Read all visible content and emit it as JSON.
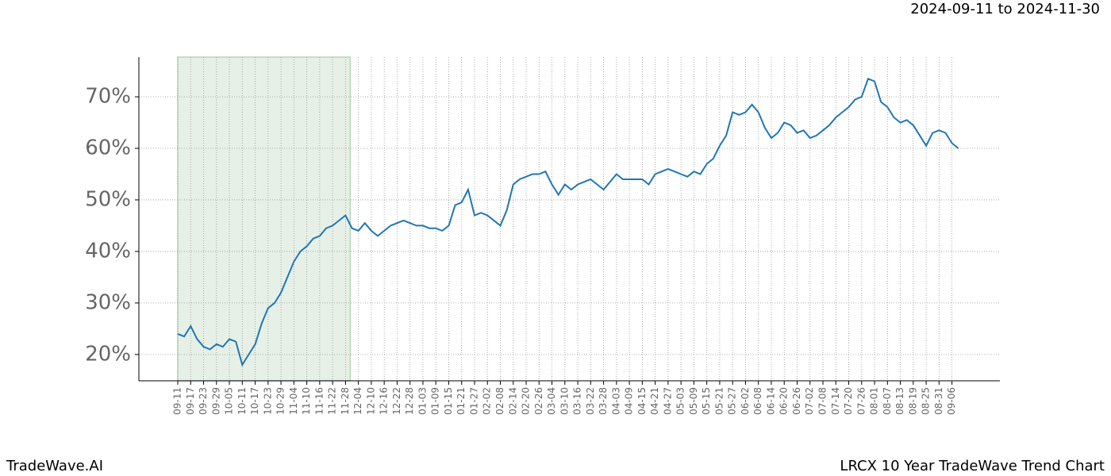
{
  "chart_data": {
    "type": "line",
    "subtitle": "2024-09-11 to 2024-11-30",
    "footer_left": "TradeWave.AI",
    "footer_right": "LRCX 10 Year TradeWave Trend Chart",
    "categories": [
      "09-11",
      null,
      "09-17",
      null,
      "09-23",
      null,
      "09-29",
      null,
      "10-05",
      null,
      "10-11",
      null,
      "10-17",
      null,
      "10-23",
      null,
      "10-29",
      null,
      "11-04",
      null,
      "11-10",
      null,
      "11-16",
      null,
      "11-22",
      null,
      "11-28",
      null,
      "12-04",
      null,
      "12-10",
      null,
      "12-16",
      null,
      "12-22",
      null,
      "12-28",
      null,
      "01-03",
      null,
      "01-09",
      null,
      "01-15",
      null,
      "01-21",
      null,
      "01-27",
      null,
      "02-02",
      null,
      "02-08",
      null,
      "02-14",
      null,
      "02-20",
      null,
      "02-26",
      null,
      "03-04",
      null,
      "03-10",
      null,
      "03-16",
      null,
      "03-22",
      null,
      "03-28",
      null,
      "04-03",
      null,
      "04-09",
      null,
      "04-15",
      null,
      "04-21",
      null,
      "04-27",
      null,
      "05-03",
      null,
      "05-09",
      null,
      "05-15",
      null,
      "05-21",
      null,
      "05-27",
      null,
      "06-02",
      null,
      "06-08",
      null,
      "06-14",
      null,
      "06-20",
      null,
      "06-26",
      null,
      "07-02",
      null,
      "07-08",
      null,
      "07-14",
      null,
      "07-20",
      null,
      "07-26",
      null,
      "08-01",
      null,
      "08-07",
      null,
      "08-13",
      null,
      "08-19",
      null,
      "08-25",
      null,
      "08-31",
      null,
      "09-06",
      null
    ],
    "series": [
      {
        "color": "#1f77b4",
        "values": [
          24,
          23.5,
          25.5,
          23,
          21.5,
          21,
          22,
          21.5,
          23,
          22.5,
          18,
          20,
          22,
          26,
          29,
          30,
          32,
          35,
          38,
          40,
          41,
          42.5,
          43,
          44.5,
          45,
          46,
          47,
          44.5,
          44,
          45.5,
          44,
          43,
          44,
          45,
          45.5,
          46,
          45.5,
          45,
          45,
          44.5,
          44.5,
          44,
          45,
          49,
          49.5,
          52,
          47,
          47.5,
          47,
          46,
          45,
          48,
          53,
          54,
          54.5,
          55,
          55,
          55.5,
          53,
          51,
          53,
          52,
          53,
          53.5,
          54,
          53,
          52,
          53.5,
          55,
          54,
          54,
          54,
          54,
          53,
          55,
          55.5,
          56,
          55.5,
          55,
          54.5,
          55.5,
          55,
          57,
          58,
          60.5,
          62.5,
          67,
          66.5,
          67,
          68.5,
          67,
          64,
          62,
          63,
          65,
          64.5,
          63,
          63.5,
          62,
          62.5,
          63.5,
          64.5,
          66,
          67,
          68,
          69.5,
          70,
          73.5,
          73,
          69,
          68,
          66,
          65,
          65.5,
          64.5,
          62.5,
          60.5,
          63,
          63.5,
          63,
          61,
          60
        ]
      }
    ],
    "ylim": [
      14.9,
      77.7
    ],
    "yticks": [
      {
        "value": 20,
        "label": "20%"
      },
      {
        "value": 30,
        "label": "30%"
      },
      {
        "value": 40,
        "label": "40%"
      },
      {
        "value": 50,
        "label": "50%"
      },
      {
        "value": 60,
        "label": "60%"
      },
      {
        "value": 70,
        "label": "70%"
      }
    ],
    "grid": true,
    "shade": {
      "from": "09-11",
      "to": "11-28",
      "color": "#e6f0e6"
    }
  }
}
